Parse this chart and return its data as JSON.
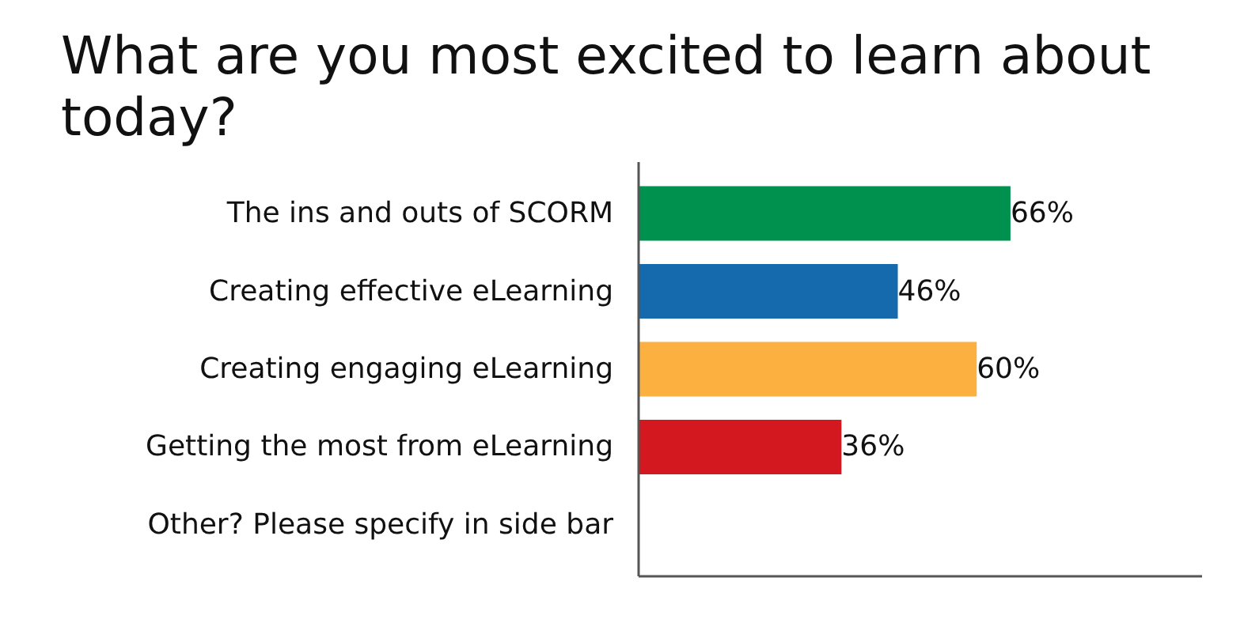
{
  "chart_data": {
    "type": "bar",
    "orientation": "horizontal",
    "title": "What are you most excited to learn about today?",
    "categories": [
      "The ins and outs of SCORM",
      "Creating effective eLearning",
      "Creating engaging eLearning",
      "Getting the most from eLearning",
      "Other? Please specify in side bar"
    ],
    "values": [
      66,
      46,
      60,
      36,
      null
    ],
    "colors": [
      "#00914f",
      "#1569ad",
      "#fbb040",
      "#d4181f",
      null
    ],
    "value_labels": [
      "66%",
      "46%",
      "60%",
      "36%",
      null
    ],
    "xlim": [
      0,
      100
    ],
    "tick_labels": "y"
  }
}
